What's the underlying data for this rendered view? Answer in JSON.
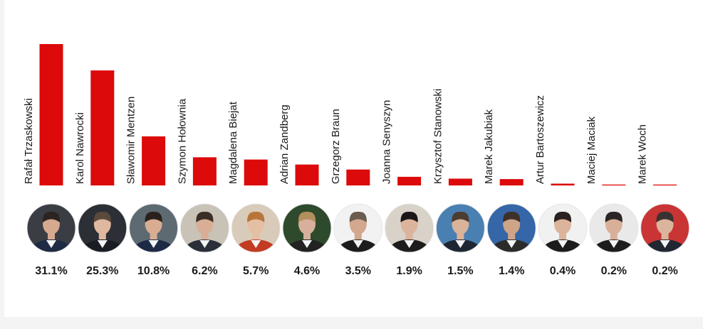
{
  "colors": {
    "bar": "#dc0a0a",
    "text": "#1a1a1a",
    "avatar_ring": "#e6e6e6"
  },
  "chart_data": {
    "type": "bar",
    "title": "",
    "xlabel": "",
    "ylabel": "",
    "ylim": [
      0,
      31.1
    ],
    "grid": false,
    "value_suffix": "%",
    "categories": [
      "Rafał Trzaskowski",
      "Karol Nawrocki",
      "Sławomir Mentzen",
      "Szymon Hołownia",
      "Magdalena Biejat",
      "Adrian Zandberg",
      "Grzegorz Braun",
      "Joanna Senyszyn",
      "Krzysztof Stanowski",
      "Marek Jakubiak",
      "Artur Bartoszewicz",
      "Maciej Maciak",
      "Marek Woch"
    ],
    "values": [
      31.1,
      25.3,
      10.8,
      6.2,
      5.7,
      4.6,
      3.5,
      1.9,
      1.5,
      1.4,
      0.4,
      0.2,
      0.2
    ],
    "value_labels": [
      "31.1%",
      "25.3%",
      "10.8%",
      "6.2%",
      "5.7%",
      "4.6%",
      "3.5%",
      "1.9%",
      "1.5%",
      "1.4%",
      "0.4%",
      "0.2%",
      "0.2%"
    ]
  },
  "avatars": [
    {
      "icon": "portrait-icon",
      "bg": "#3a3d44",
      "skin": "#d7a98e",
      "hair": "#2b2420",
      "shirt": "#1f2a44"
    },
    {
      "icon": "portrait-icon",
      "bg": "#2c2f35",
      "skin": "#e0b8a0",
      "hair": "#5a4a3c",
      "shirt": "#1a1d24"
    },
    {
      "icon": "portrait-icon",
      "bg": "#5e6a72",
      "skin": "#d9ad92",
      "hair": "#2a211c",
      "shirt": "#1d2a46"
    },
    {
      "icon": "portrait-icon",
      "bg": "#c9c2b6",
      "skin": "#d8ae96",
      "hair": "#3a2e27",
      "shirt": "#2a2f3a"
    },
    {
      "icon": "portrait-icon",
      "bg": "#d9cbb9",
      "skin": "#e5bfa4",
      "hair": "#b8743a",
      "shirt": "#c23b22"
    },
    {
      "icon": "portrait-icon",
      "bg": "#2e4a2c",
      "skin": "#d6b09a",
      "hair": "#b38f5e",
      "shirt": "#222222"
    },
    {
      "icon": "portrait-icon",
      "bg": "#f2f2f2",
      "skin": "#d3a88d",
      "hair": "#6b5c50",
      "shirt": "#1c1c1c"
    },
    {
      "icon": "portrait-icon",
      "bg": "#d8d2c8",
      "skin": "#dcb49c",
      "hair": "#1b1718",
      "shirt": "#1d1d1d"
    },
    {
      "icon": "portrait-icon",
      "bg": "#4a7fb2",
      "skin": "#d9b39a",
      "hair": "#4d3c30",
      "shirt": "#1e2533"
    },
    {
      "icon": "portrait-icon",
      "bg": "#3566a8",
      "skin": "#cfa487",
      "hair": "#3d3129",
      "shirt": "#2b2b2b"
    },
    {
      "icon": "portrait-icon",
      "bg": "#f1f1f1",
      "skin": "#dcb39b",
      "hair": "#2a2220",
      "shirt": "#1c1c1c"
    },
    {
      "icon": "portrait-icon",
      "bg": "#e9e9e9",
      "skin": "#d8b09a",
      "hair": "#2b2625",
      "shirt": "#1d1d1d"
    },
    {
      "icon": "portrait-icon",
      "bg": "#c93535",
      "skin": "#dbb49c",
      "hair": "#3a3230",
      "shirt": "#202632"
    }
  ]
}
